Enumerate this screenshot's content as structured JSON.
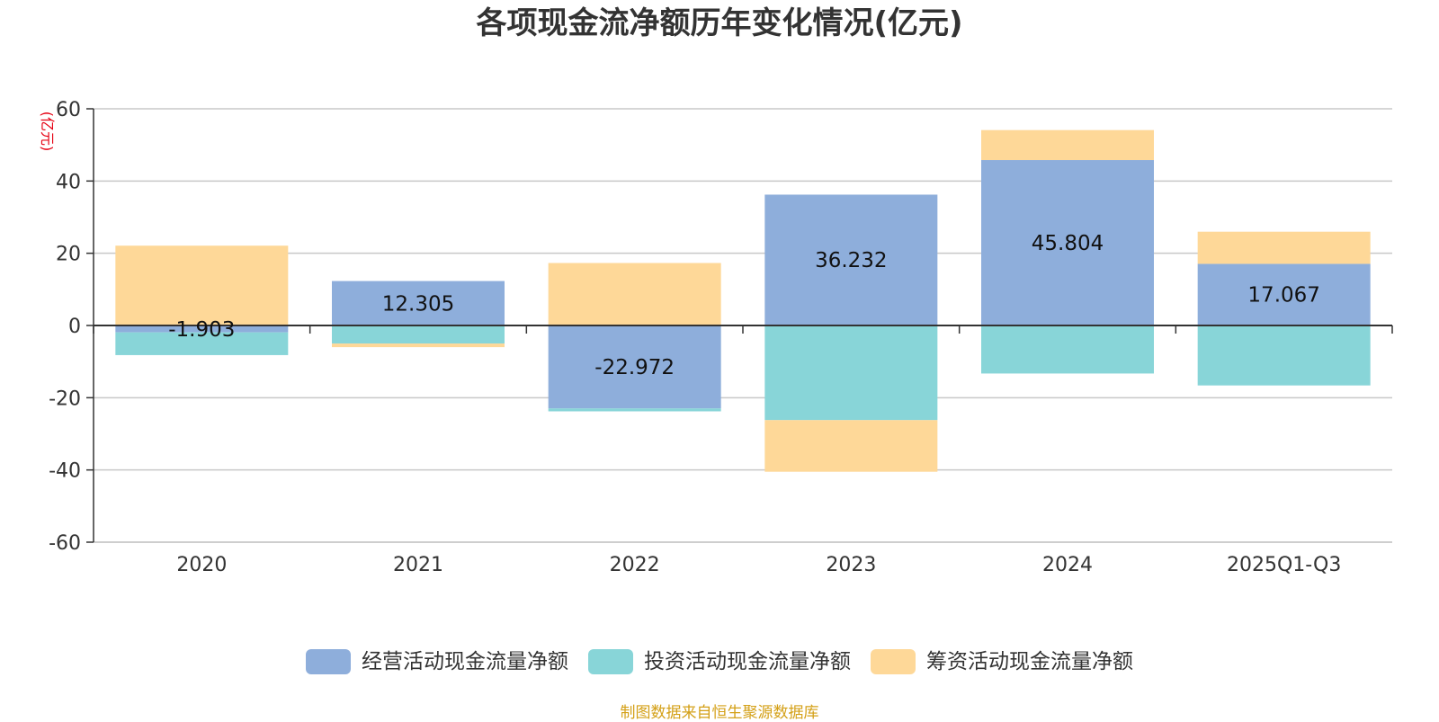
{
  "chart_data": {
    "type": "bar",
    "stacked": true,
    "title": "各项现金流净额历年变化情况(亿元)",
    "ylabel": "(亿元)",
    "ylim": [
      -60,
      60
    ],
    "yticks": [
      60,
      40,
      20,
      0,
      -20,
      -40,
      -60
    ],
    "grid": true,
    "legend_position": "bottom",
    "categories": [
      "2020",
      "2021",
      "2022",
      "2023",
      "2024",
      "2025Q1-Q3"
    ],
    "series": [
      {
        "name": "经营活动现金流量净额",
        "color": "#8eaedb",
        "values": [
          -1.903,
          12.305,
          -22.972,
          36.232,
          45.804,
          17.067
        ],
        "labels": [
          "-1.903",
          "12.305",
          "-22.972",
          "36.232",
          "45.804",
          "17.067"
        ]
      },
      {
        "name": "投资活动现金流量净额",
        "color": "#88d5d8",
        "values": [
          -6.3,
          -5.0,
          -0.8,
          -26.2,
          -13.3,
          -16.6
        ]
      },
      {
        "name": "筹资活动现金流量净额",
        "color": "#fed898",
        "values": [
          22.1,
          -1.0,
          17.3,
          -14.3,
          8.3,
          8.9
        ]
      }
    ]
  },
  "source_note": "制图数据来自恒生聚源数据库"
}
